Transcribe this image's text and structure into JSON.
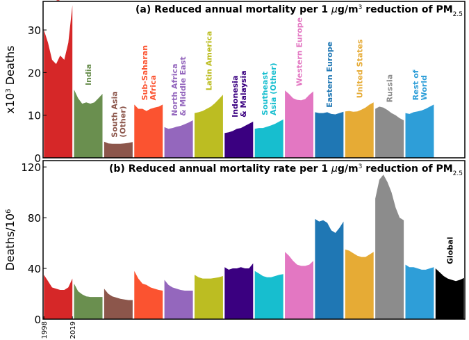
{
  "chart_data": [
    {
      "type": "area",
      "title": {
        "prefix": "(a) Reduced annual mortality per 1 ",
        "mu": "μ",
        "mid": "g/m",
        "sup": "3",
        "tail": " reduction of PM",
        "sub": "2.5"
      },
      "ylabel": {
        "base": "x10",
        "sup": "3",
        "tail": " Deaths"
      },
      "ylim": [
        0,
        36.7
      ],
      "yticks": [
        "0",
        "10",
        "20",
        "30"
      ],
      "ytick_values": [
        0,
        10,
        20,
        30
      ],
      "years": [
        1998,
        2001,
        2004,
        2007,
        2010,
        2013,
        2016,
        2019
      ],
      "series": [
        {
          "name": [
            "China"
          ],
          "color": "#d62728",
          "values": [
            30,
            27,
            23,
            22,
            24,
            23,
            27,
            35.8
          ]
        },
        {
          "name": [
            "India"
          ],
          "color": "#6a8f4f",
          "values": [
            16,
            14,
            12.7,
            13,
            12.7,
            13,
            14,
            15
          ]
        },
        {
          "name": [
            "South Asia",
            "(Other)"
          ],
          "color": "#8c564b",
          "values": [
            3.8,
            3.4,
            3.3,
            3.3,
            3.3,
            3.4,
            3.5,
            3.7
          ]
        },
        {
          "name": [
            "Sub-Saharan",
            "Africa"
          ],
          "color": "#fb5330",
          "values": [
            12.5,
            11.5,
            11.5,
            11,
            11.5,
            11.8,
            12,
            12.5
          ]
        },
        {
          "name": [
            "North Africa",
            "& Middle East"
          ],
          "color": "#9467bd",
          "values": [
            7.2,
            6.8,
            7,
            7.3,
            7.5,
            7.9,
            8.3,
            8.8
          ]
        },
        {
          "name": [
            "Latin America"
          ],
          "color": "#bcbd22",
          "values": [
            10.5,
            10.7,
            11,
            11.5,
            12,
            12.8,
            13.8,
            14.8
          ]
        },
        {
          "name": [
            "Indonesia",
            "& Malaysia"
          ],
          "color": "#3a0080",
          "values": [
            5.8,
            6,
            6.3,
            6.8,
            7,
            7.5,
            8,
            8.5
          ]
        },
        {
          "name": [
            "Southeast",
            "Asia (Other)"
          ],
          "color": "#17becf",
          "values": [
            6.8,
            7,
            7,
            7.3,
            7.6,
            8,
            8.5,
            9
          ]
        },
        {
          "name": [
            "Western Europe"
          ],
          "color": "#e377c2",
          "values": [
            15.8,
            15,
            14,
            13.6,
            13.5,
            13.8,
            14.8,
            15.6
          ]
        },
        {
          "name": [
            "Eastern Europe"
          ],
          "color": "#1f77b4",
          "values": [
            10.7,
            10.5,
            10.5,
            10.7,
            10.3,
            10.2,
            10.5,
            10.8
          ]
        },
        {
          "name": [
            "United States"
          ],
          "color": "#e6ab35",
          "values": [
            10.9,
            11,
            10.8,
            10.9,
            11.3,
            11.8,
            12.5,
            13
          ]
        },
        {
          "name": [
            "Russia"
          ],
          "color": "#8c8c8c",
          "values": [
            11.5,
            12,
            11.8,
            11.2,
            10.5,
            10,
            9.3,
            8.8
          ]
        },
        {
          "name": [
            "Rest of",
            "World"
          ],
          "color": "#2e9ed8",
          "values": [
            10.5,
            10.3,
            10.7,
            10.9,
            11.1,
            11.5,
            12,
            12.5
          ]
        }
      ]
    },
    {
      "type": "area",
      "title": {
        "prefix": "(b) Reduced annual mortality rate per 1 ",
        "mu": "μ",
        "mid": "g/m",
        "sup": "3",
        "tail": " reduction of PM",
        "sub": "2.5"
      },
      "ylabel": {
        "base": "Deaths/10",
        "sup": "6",
        "tail": ""
      },
      "ylim": [
        0,
        125
      ],
      "yticks": [
        "0",
        "40",
        "80",
        "120"
      ],
      "ytick_values": [
        0,
        40,
        80,
        120
      ],
      "xticks": [
        "1998",
        "2019"
      ],
      "years": [
        1998,
        2001,
        2004,
        2007,
        2010,
        2013,
        2016,
        2019
      ],
      "series": [
        {
          "color": "#d62728",
          "values": [
            35,
            30,
            25,
            24,
            23,
            23,
            25,
            32
          ]
        },
        {
          "color": "#6a8f4f",
          "values": [
            28,
            22,
            19.5,
            18,
            17.5,
            17.5,
            17.5,
            17.5
          ]
        },
        {
          "color": "#8c564b",
          "values": [
            24,
            20,
            18,
            17,
            16,
            15.5,
            15,
            15
          ]
        },
        {
          "color": "#fb5330",
          "values": [
            38,
            32,
            28,
            27,
            25,
            24,
            23,
            22.5
          ]
        },
        {
          "color": "#9467bd",
          "values": [
            31,
            27,
            25,
            24,
            23,
            22.5,
            22.5,
            22.5
          ]
        },
        {
          "color": "#bcbd22",
          "values": [
            35,
            33,
            32,
            32,
            32,
            32.5,
            33,
            34
          ]
        },
        {
          "color": "#3a0080",
          "values": [
            41,
            39,
            40,
            40,
            41,
            40,
            40,
            44
          ]
        },
        {
          "color": "#17becf",
          "values": [
            38,
            36,
            34,
            33,
            33,
            34,
            35,
            35.5
          ]
        },
        {
          "color": "#e377c2",
          "values": [
            53,
            50,
            46,
            43,
            42,
            42,
            43,
            46
          ]
        },
        {
          "color": "#1f77b4",
          "values": [
            79,
            77,
            78,
            76,
            70,
            68,
            72,
            77
          ]
        },
        {
          "color": "#e6ab35",
          "values": [
            55,
            54,
            52,
            50,
            49,
            49,
            51,
            53
          ]
        },
        {
          "color": "#8c8c8c",
          "values": [
            95,
            110,
            114,
            108,
            100,
            88,
            80,
            78
          ]
        },
        {
          "color": "#2e9ed8",
          "values": [
            43,
            41,
            41,
            40,
            39,
            39,
            40,
            41
          ]
        },
        {
          "name": [
            "Global"
          ],
          "color": "#000000",
          "values": [
            40,
            37,
            34,
            32,
            31,
            30,
            31,
            32.5
          ]
        }
      ]
    }
  ]
}
